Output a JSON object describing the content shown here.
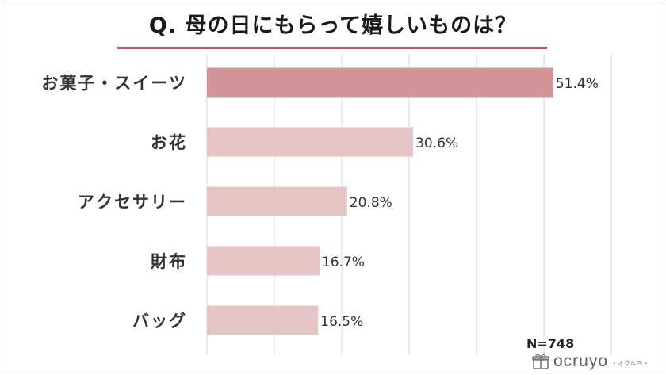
{
  "title": "Q. 母の日にもらって嬉しいものは？",
  "sample_note": "N=748",
  "brand": {
    "name": "ocruyo",
    "sub": "・オクルヨ・"
  },
  "colors": {
    "accent": "#c0545c",
    "top_bar": "#d4959a",
    "bar": "#e6c5c7",
    "grid": "#d9d9d9"
  },
  "chart_data": {
    "type": "bar",
    "orientation": "horizontal",
    "categories": [
      "お菓子・スイーツ",
      "お花",
      "アクセサリー",
      "財布",
      "バッグ"
    ],
    "values": [
      51.4,
      30.6,
      20.8,
      16.7,
      16.5
    ],
    "value_labels": [
      "51.4%",
      "30.6%",
      "20.8%",
      "16.7%",
      "16.5%"
    ],
    "xlim": [
      0,
      60
    ],
    "grid": true,
    "highlight_index": 0
  }
}
